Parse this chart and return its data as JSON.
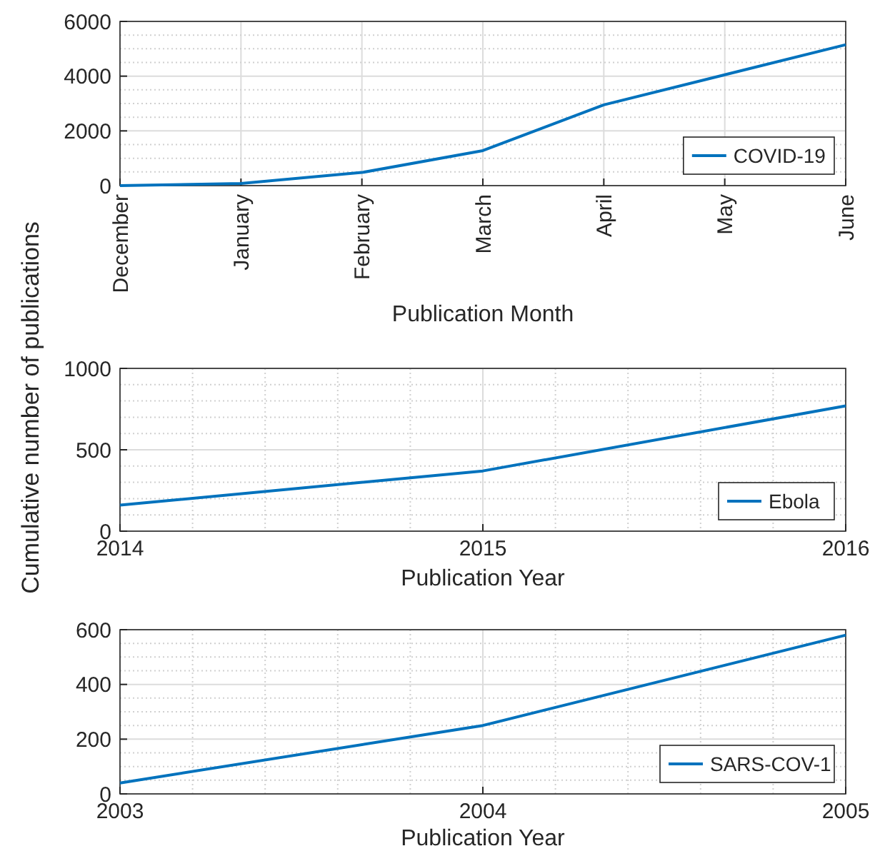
{
  "chart_data": [
    {
      "type": "line",
      "xlabel": "Publication Month",
      "categories": [
        "December",
        "January",
        "February",
        "March",
        "April",
        "May",
        "June"
      ],
      "series": [
        {
          "name": "COVID-19",
          "color": "#0072bd",
          "values": [
            0,
            80,
            480,
            1280,
            2950,
            4050,
            5150
          ]
        }
      ],
      "ylim": [
        0,
        6000
      ],
      "yticks": [
        0,
        {
          "value": 500,
          "label": null
        },
        {
          "value": 1000,
          "label": null
        },
        {
          "value": 1500,
          "label": null
        },
        2000,
        {
          "value": 2500,
          "label": null
        },
        {
          "value": 3000,
          "label": null
        },
        {
          "value": 3500,
          "label": null
        },
        4000,
        {
          "value": 4500,
          "label": null
        },
        {
          "value": 5000,
          "label": null
        },
        {
          "value": 5500,
          "label": null
        },
        6000
      ],
      "grid": true,
      "legend": "bottom right"
    },
    {
      "type": "line",
      "xlabel": "Publication Year",
      "ylabel": "Cumulative number of publications",
      "x": [
        2014,
        2015,
        2016
      ],
      "series": [
        {
          "name": "Ebola",
          "color": "#0072bd",
          "values": [
            160,
            370,
            770
          ]
        }
      ],
      "xlim": [
        2014,
        2016
      ],
      "xticks": [
        2014,
        {
          "value": 2014.2,
          "label": null
        },
        {
          "value": 2014.4,
          "label": null
        },
        {
          "value": 2014.6,
          "label": null
        },
        {
          "value": 2014.8,
          "label": null
        },
        2015,
        {
          "value": 2015.2,
          "label": null
        },
        {
          "value": 2015.4,
          "label": null
        },
        {
          "value": 2015.6,
          "label": null
        },
        {
          "value": 2015.8,
          "label": null
        },
        2016
      ],
      "ylim": [
        0,
        1000
      ],
      "yticks": [
        0,
        {
          "value": 100,
          "label": null
        },
        {
          "value": 200,
          "label": null
        },
        {
          "value": 300,
          "label": null
        },
        {
          "value": 400,
          "label": null
        },
        500,
        {
          "value": 600,
          "label": null
        },
        {
          "value": 700,
          "label": null
        },
        {
          "value": 800,
          "label": null
        },
        {
          "value": 900,
          "label": null
        },
        1000
      ],
      "grid": true,
      "legend": "bottom right"
    },
    {
      "type": "line",
      "xlabel": "Publication Year",
      "x": [
        2003,
        2004,
        2005
      ],
      "series": [
        {
          "name": "SARS-COV-1",
          "color": "#0072bd",
          "values": [
            40,
            250,
            580
          ]
        }
      ],
      "xlim": [
        2003,
        2005
      ],
      "xticks": [
        2003,
        {
          "value": 2003.2,
          "label": null
        },
        {
          "value": 2003.4,
          "label": null
        },
        {
          "value": 2003.6,
          "label": null
        },
        {
          "value": 2003.8,
          "label": null
        },
        2004,
        {
          "value": 2004.2,
          "label": null
        },
        {
          "value": 2004.4,
          "label": null
        },
        {
          "value": 2004.6,
          "label": null
        },
        {
          "value": 2004.8,
          "label": null
        },
        2005
      ],
      "ylim": [
        0,
        600
      ],
      "yticks": [
        0,
        {
          "value": 50,
          "label": null
        },
        {
          "value": 100,
          "label": null
        },
        {
          "value": 150,
          "label": null
        },
        200,
        {
          "value": 250,
          "label": null
        },
        {
          "value": 300,
          "label": null
        },
        {
          "value": 350,
          "label": null
        },
        400,
        {
          "value": 450,
          "label": null
        },
        {
          "value": 500,
          "label": null
        },
        {
          "value": 550,
          "label": null
        },
        600
      ],
      "grid": true,
      "legend": "bottom right"
    }
  ]
}
